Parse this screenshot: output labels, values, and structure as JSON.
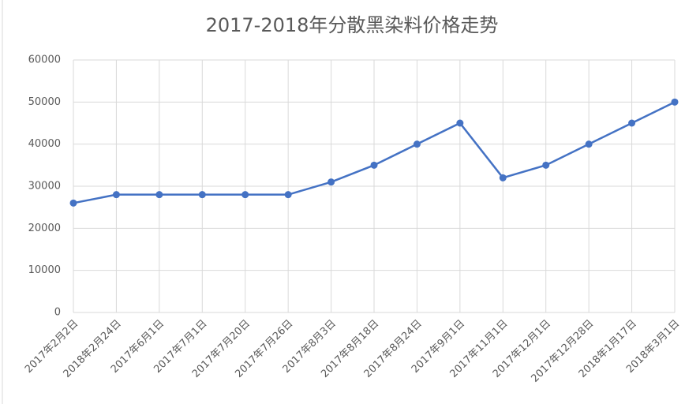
{
  "chart_data": {
    "type": "line",
    "title": "2017-2018年分散黑染料价格走势",
    "categories": [
      "2017年2月2日",
      "2018年2月24日",
      "2017年6月1日",
      "2017年7月1日",
      "2017年7月20日",
      "2017年7月26日",
      "2017年8月3日",
      "2017年8月18日",
      "2017年8月24日",
      "2017年9月1日",
      "2017年11月1日",
      "2017年12月1日",
      "2017年12月28日",
      "2018年1月17日",
      "2018年3月1日"
    ],
    "values": [
      26000,
      28000,
      28000,
      28000,
      28000,
      28000,
      31000,
      35000,
      40000,
      45000,
      32000,
      35000,
      40000,
      45000,
      50000
    ],
    "color": "#4472c4",
    "ylim": [
      0,
      60000
    ],
    "yticks": [
      0,
      10000,
      20000,
      30000,
      40000,
      50000,
      60000
    ],
    "grid": true
  }
}
